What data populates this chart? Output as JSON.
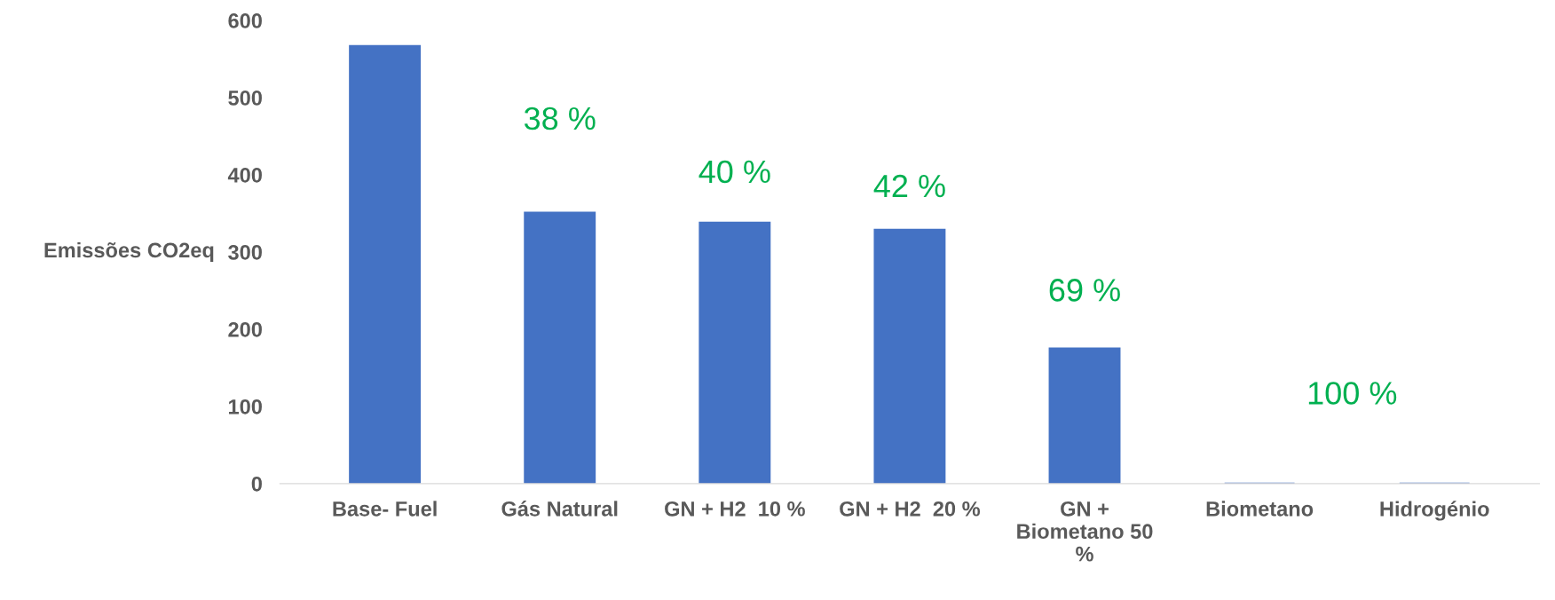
{
  "chart_data": {
    "type": "bar",
    "ylabel": "Emissões CO2eq",
    "categories": [
      "Base- Fuel",
      "Gás Natural",
      "GN + H2  10 %",
      "GN + H2  20 %",
      "GN +\nBiometano 50\n%",
      "Biometano",
      "Hidrogénio"
    ],
    "values": [
      567,
      351,
      338,
      329,
      175,
      0,
      0
    ],
    "color": "#4472c4",
    "ylim": [
      0,
      600
    ],
    "yticks": [
      0,
      100,
      200,
      300,
      400,
      500,
      600
    ],
    "grid": false,
    "legend": false,
    "annotations": [
      "38 %",
      "40 %",
      "42 %",
      "69 %",
      "100 %"
    ]
  }
}
